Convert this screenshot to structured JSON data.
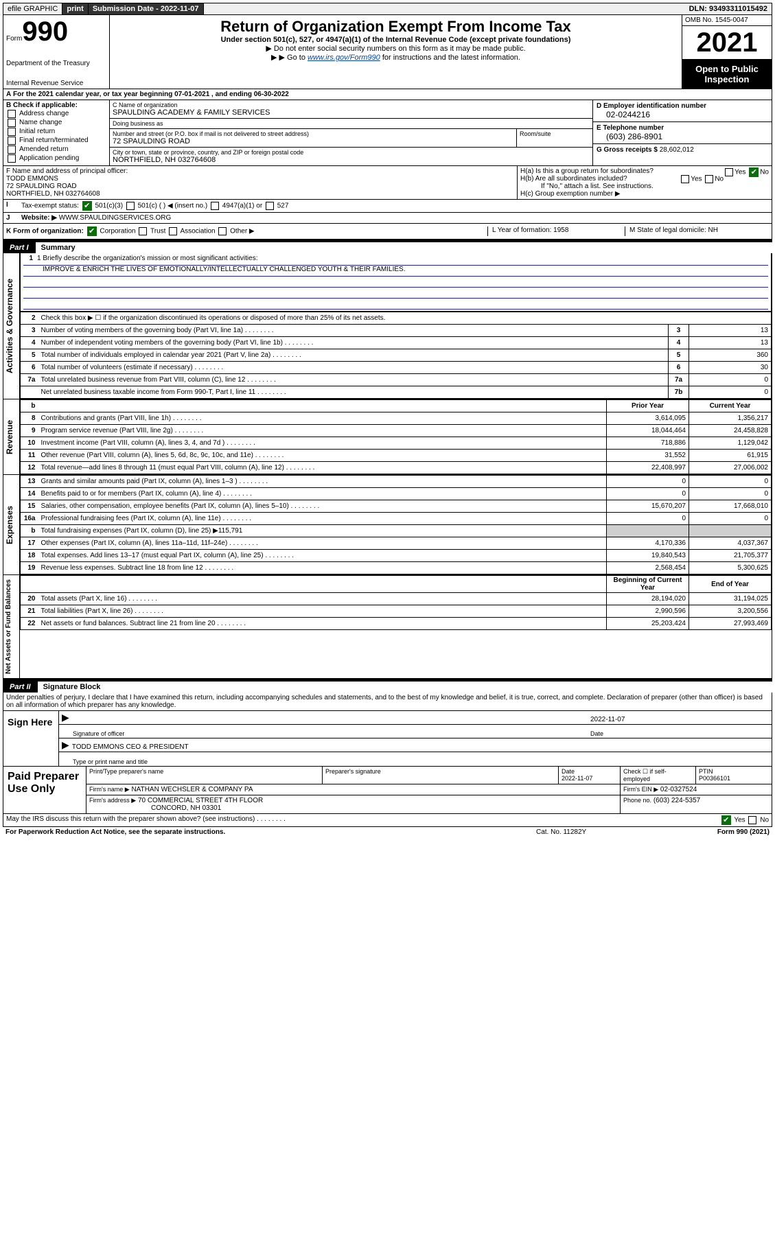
{
  "topbar": {
    "efile": "efile GRAPHIC",
    "print": "print",
    "subdate_label": "Submission Date - 2022-11-07",
    "dln_label": "DLN:",
    "dln": "93493311015492"
  },
  "header": {
    "form_word": "Form",
    "form_num": "990",
    "dept": "Department of the Treasury",
    "irs": "Internal Revenue Service",
    "title": "Return of Organization Exempt From Income Tax",
    "sub1": "Under section 501(c), 527, or 4947(a)(1) of the Internal Revenue Code (except private foundations)",
    "sub2": "Do not enter social security numbers on this form as it may be made public.",
    "sub3_pre": "Go to ",
    "sub3_link": "www.irs.gov/Form990",
    "sub3_post": " for instructions and the latest information.",
    "omb_label": "OMB No. 1545-0047",
    "year": "2021",
    "open": "Open to Public Inspection"
  },
  "rowA": "For the 2021 calendar year, or tax year beginning 07-01-2021   , and ending 06-30-2022",
  "colB": {
    "label": "B Check if applicable:",
    "items": [
      "Address change",
      "Name change",
      "Initial return",
      "Final return/terminated",
      "Amended return",
      "Application pending"
    ]
  },
  "colC": {
    "name_label": "C Name of organization",
    "name": "SPAULDING ACADEMY & FAMILY SERVICES",
    "dba_label": "Doing business as",
    "dba": "",
    "street_label": "Number and street (or P.O. box if mail is not delivered to street address)",
    "room_label": "Room/suite",
    "street": "72 SPAULDING ROAD",
    "city_label": "City or town, state or province, country, and ZIP or foreign postal code",
    "city": "NORTHFIELD, NH  032764608"
  },
  "colD": {
    "ein_label": "D Employer identification number",
    "ein": "02-0244216",
    "tel_label": "E Telephone number",
    "tel": "(603) 286-8901",
    "gross_label": "G Gross receipts $",
    "gross": "28,602,012"
  },
  "rowF": {
    "label": "F Name and address of principal officer:",
    "name": "TODD EMMONS",
    "addr1": "72 SPAULDING ROAD",
    "addr2": "NORTHFIELD, NH  032764608"
  },
  "rowH": {
    "a": "H(a)  Is this a group return for subordinates?",
    "b": "H(b)  Are all subordinates included?",
    "b2": "If \"No,\" attach a list. See instructions.",
    "c": "H(c)  Group exemption number ▶"
  },
  "rowI": {
    "label": "Tax-exempt status:",
    "opt1": "501(c)(3)",
    "opt2": "501(c) (   ) ◀ (insert no.)",
    "opt3": "4947(a)(1) or",
    "opt4": "527"
  },
  "rowJ": {
    "label": "Website: ▶",
    "val": "WWW.SPAULDINGSERVICES.ORG"
  },
  "rowK": {
    "label": "K Form of organization:",
    "opts": [
      "Corporation",
      "Trust",
      "Association",
      "Other ▶"
    ],
    "L": "L Year of formation: 1958",
    "M": "M State of legal domicile: NH"
  },
  "part1": {
    "num": "Part I",
    "title": "Summary"
  },
  "mission": {
    "q1": "1 Briefly describe the organization's mission or most significant activities:",
    "ans": "IMPROVE & ENRICH THE LIVES OF EMOTIONALLY/INTELLECTUALLY CHALLENGED YOUTH & THEIR FAMILIES."
  },
  "section_labels": {
    "ag": "Activities & Governance",
    "rev": "Revenue",
    "exp": "Expenses",
    "na": "Net Assets or Fund Balances"
  },
  "gov_rows": [
    {
      "n": "2",
      "d": "Check this box ▶ ☐  if the organization discontinued its operations or disposed of more than 25% of its net assets.",
      "box": "",
      "py": "",
      "cy": ""
    },
    {
      "n": "3",
      "d": "Number of voting members of the governing body (Part VI, line 1a)",
      "box": "3",
      "cy": "13"
    },
    {
      "n": "4",
      "d": "Number of independent voting members of the governing body (Part VI, line 1b)",
      "box": "4",
      "cy": "13"
    },
    {
      "n": "5",
      "d": "Total number of individuals employed in calendar year 2021 (Part V, line 2a)",
      "box": "5",
      "cy": "360"
    },
    {
      "n": "6",
      "d": "Total number of volunteers (estimate if necessary)",
      "box": "6",
      "cy": "30"
    },
    {
      "n": "7a",
      "d": "Total unrelated business revenue from Part VIII, column (C), line 12",
      "box": "7a",
      "cy": "0"
    },
    {
      "n": "",
      "d": "Net unrelated business taxable income from Form 990-T, Part I, line 11",
      "box": "7b",
      "cy": "0"
    }
  ],
  "rev_hdr": {
    "py": "Prior Year",
    "cy": "Current Year"
  },
  "rev_rows": [
    {
      "n": "8",
      "d": "Contributions and grants (Part VIII, line 1h)",
      "py": "3,614,095",
      "cy": "1,356,217"
    },
    {
      "n": "9",
      "d": "Program service revenue (Part VIII, line 2g)",
      "py": "18,044,464",
      "cy": "24,458,828"
    },
    {
      "n": "10",
      "d": "Investment income (Part VIII, column (A), lines 3, 4, and 7d )",
      "py": "718,886",
      "cy": "1,129,042"
    },
    {
      "n": "11",
      "d": "Other revenue (Part VIII, column (A), lines 5, 6d, 8c, 9c, 10c, and 11e)",
      "py": "31,552",
      "cy": "61,915"
    },
    {
      "n": "12",
      "d": "Total revenue—add lines 8 through 11 (must equal Part VIII, column (A), line 12)",
      "py": "22,408,997",
      "cy": "27,006,002"
    }
  ],
  "exp_rows": [
    {
      "n": "13",
      "d": "Grants and similar amounts paid (Part IX, column (A), lines 1–3 )",
      "py": "0",
      "cy": "0"
    },
    {
      "n": "14",
      "d": "Benefits paid to or for members (Part IX, column (A), line 4)",
      "py": "0",
      "cy": "0"
    },
    {
      "n": "15",
      "d": "Salaries, other compensation, employee benefits (Part IX, column (A), lines 5–10)",
      "py": "15,670,207",
      "cy": "17,668,010"
    },
    {
      "n": "16a",
      "d": "Professional fundraising fees (Part IX, column (A), line 11e)",
      "py": "0",
      "cy": "0"
    },
    {
      "n": "b",
      "d": "Total fundraising expenses (Part IX, column (D), line 25) ▶115,791",
      "py": "",
      "cy": "",
      "grey": true
    },
    {
      "n": "17",
      "d": "Other expenses (Part IX, column (A), lines 11a–11d, 11f–24e)",
      "py": "4,170,336",
      "cy": "4,037,367"
    },
    {
      "n": "18",
      "d": "Total expenses. Add lines 13–17 (must equal Part IX, column (A), line 25)",
      "py": "19,840,543",
      "cy": "21,705,377"
    },
    {
      "n": "19",
      "d": "Revenue less expenses. Subtract line 18 from line 12",
      "py": "2,568,454",
      "cy": "5,300,625"
    }
  ],
  "na_hdr": {
    "py": "Beginning of Current Year",
    "cy": "End of Year"
  },
  "na_rows": [
    {
      "n": "20",
      "d": "Total assets (Part X, line 16)",
      "py": "28,194,020",
      "cy": "31,194,025"
    },
    {
      "n": "21",
      "d": "Total liabilities (Part X, line 26)",
      "py": "2,990,596",
      "cy": "3,200,556"
    },
    {
      "n": "22",
      "d": "Net assets or fund balances. Subtract line 21 from line 20",
      "py": "25,203,424",
      "cy": "27,993,469"
    }
  ],
  "part2": {
    "num": "Part II",
    "title": "Signature Block"
  },
  "sig": {
    "decl": "Under penalties of perjury, I declare that I have examined this return, including accompanying schedules and statements, and to the best of my knowledge and belief, it is true, correct, and complete. Declaration of preparer (other than officer) is based on all information of which preparer has any knowledge.",
    "here": "Sign Here",
    "sig_label": "Signature of officer",
    "date_label": "Date",
    "date": "2022-11-07",
    "name": "TODD EMMONS CEO & PRESIDENT",
    "name_label": "Type or print name and title"
  },
  "prep": {
    "title": "Paid Preparer Use Only",
    "h1": "Print/Type preparer's name",
    "h2": "Preparer's signature",
    "h3": "Date",
    "date": "2022-11-07",
    "h4": "Check ☐ if self-employed",
    "h5": "PTIN",
    "ptin": "P00366101",
    "firm_label": "Firm's name    ▶",
    "firm": "NATHAN WECHSLER & COMPANY PA",
    "ein_label": "Firm's EIN ▶",
    "ein": "02-0327524",
    "addr_label": "Firm's address ▶",
    "addr1": "70 COMMERCIAL STREET 4TH FLOOR",
    "addr2": "CONCORD, NH  03301",
    "phone_label": "Phone no.",
    "phone": "(603) 224-5357"
  },
  "disclose": "May the IRS discuss this return with the preparer shown above? (see instructions)",
  "foot": {
    "pra": "For Paperwork Reduction Act Notice, see the separate instructions.",
    "cat": "Cat. No. 11282Y",
    "form": "Form 990 (2021)"
  },
  "colors": {
    "link": "#0645ad",
    "rule": "#2020aa",
    "check": "#0a6e0a",
    "grey": "#cfcfcf"
  }
}
